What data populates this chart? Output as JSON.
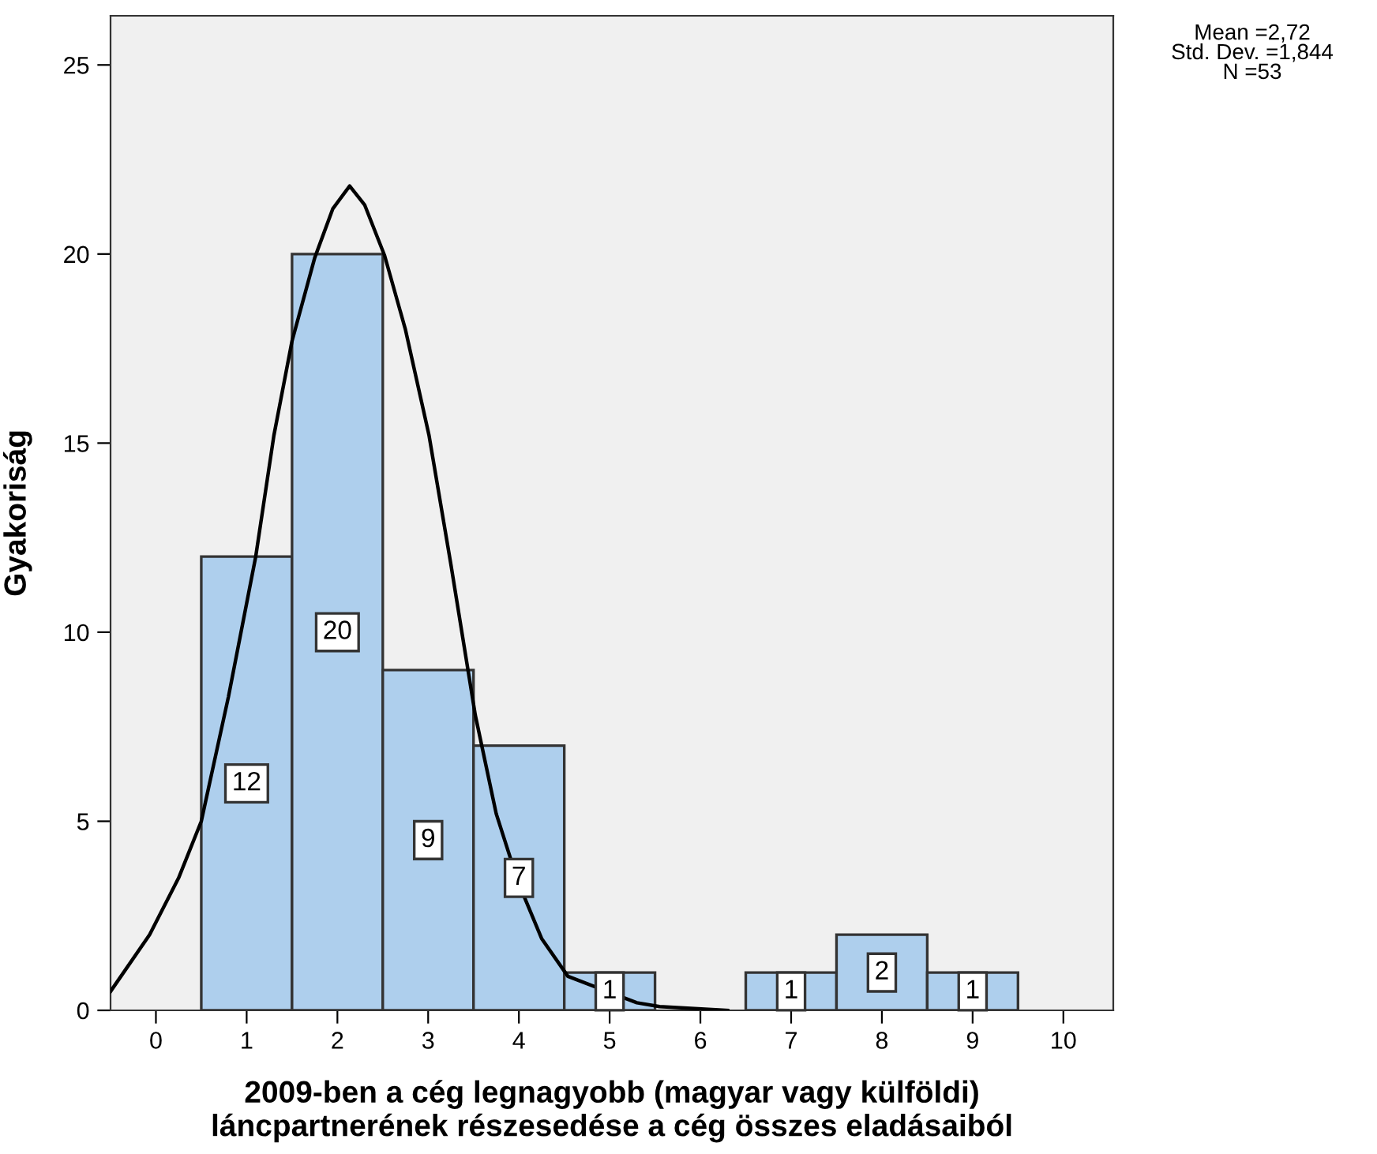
{
  "chart_data": {
    "type": "histogram",
    "bins": [
      0.5,
      1.5,
      2.5,
      3.5,
      4.5,
      5.5,
      6.5,
      7.5,
      8.5,
      9.5
    ],
    "values": [
      12,
      20,
      9,
      7,
      1,
      0,
      1,
      2,
      1
    ],
    "value_labels": [
      "12",
      "20",
      "9",
      "7",
      "1",
      null,
      "1",
      "2",
      "1"
    ],
    "color": "#aecfed",
    "series": [
      {
        "type": "line",
        "color": "#000000",
        "x": [
          -0.5,
          -0.07,
          0.25,
          0.5,
          0.8,
          1.1,
          1.3,
          1.5,
          1.75,
          1.95,
          2.135,
          2.3,
          2.52,
          2.75,
          3.01,
          3.25,
          3.52,
          3.75,
          3.99,
          4.25,
          4.54,
          5.3,
          5.55,
          6.3
        ],
        "values": [
          0.5,
          2.0,
          3.5,
          5.0,
          8.3,
          12.0,
          15.2,
          17.7,
          19.9,
          21.2,
          21.8,
          21.3,
          19.96,
          18.0,
          15.2,
          11.8,
          7.8,
          5.2,
          3.4,
          1.9,
          0.9,
          0.2,
          0.1,
          0
        ]
      }
    ],
    "xlabel": "2009-ben a cég legnagyobb (magyar vagy külföldi)\nláncpartnerének részesedése a cég összes eladásaiból",
    "ylabel": "Gyakoriság",
    "annotations": [
      "Mean =2,72\nStd. Dev. =1,844\nN =53"
    ],
    "xlim": [
      -0.5,
      10.55
    ],
    "ylim": [
      0,
      26.3
    ],
    "xticks": [
      0,
      1,
      2,
      3,
      4,
      5,
      6,
      7,
      8,
      9,
      10
    ],
    "yticks": [
      0,
      5,
      10,
      15,
      20,
      25
    ],
    "grid": false
  }
}
